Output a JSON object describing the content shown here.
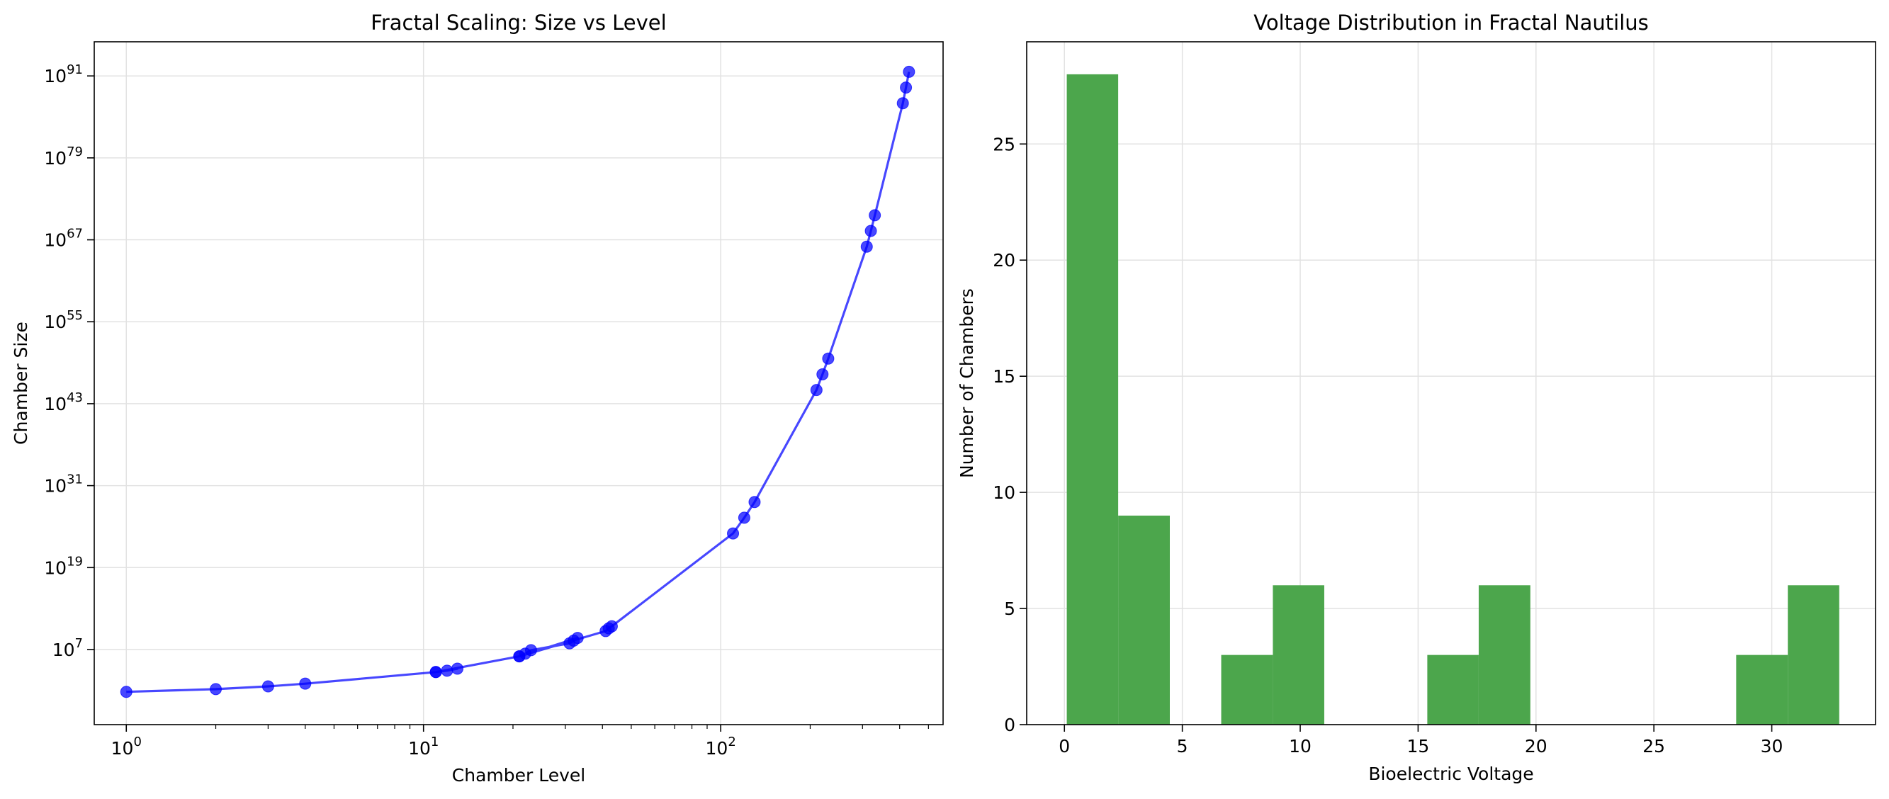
{
  "chart_data": [
    {
      "type": "line",
      "title": "Fractal Scaling: Size vs Level",
      "xlabel": "Chamber Level",
      "ylabel": "Chamber Size",
      "xscale": "log",
      "yscale": "log",
      "xlim": [
        0.78,
        560
      ],
      "ylim_exponent": [
        -4,
        96
      ],
      "grid": true,
      "xticks": [
        {
          "value": 1,
          "base": "10",
          "exp": "0"
        },
        {
          "value": 10,
          "base": "10",
          "exp": "1"
        },
        {
          "value": 100,
          "base": "10",
          "exp": "2"
        }
      ],
      "yticks": [
        {
          "exponent": 7,
          "base": "10",
          "exp": "7"
        },
        {
          "exponent": 19,
          "base": "10",
          "exp": "19"
        },
        {
          "exponent": 31,
          "base": "10",
          "exp": "31"
        },
        {
          "exponent": 43,
          "base": "10",
          "exp": "43"
        },
        {
          "exponent": 55,
          "base": "10",
          "exp": "55"
        },
        {
          "exponent": 67,
          "base": "10",
          "exp": "67"
        },
        {
          "exponent": 79,
          "base": "10",
          "exp": "79"
        },
        {
          "exponent": 91,
          "base": "10",
          "exp": "91"
        }
      ],
      "series": [
        {
          "color": "#0000ff",
          "marker": "circle",
          "points": [
            {
              "x": 1,
              "log10_y": 0.8
            },
            {
              "x": 2,
              "log10_y": 1.2
            },
            {
              "x": 3,
              "log10_y": 1.6
            },
            {
              "x": 4,
              "log10_y": 2.0
            },
            {
              "x": 11,
              "log10_y": 3.7
            },
            {
              "x": 12,
              "log10_y": 3.9
            },
            {
              "x": 13,
              "log10_y": 4.2
            },
            {
              "x": 11,
              "log10_y": 3.7
            },
            {
              "x": 21,
              "log10_y": 6.0
            },
            {
              "x": 22,
              "log10_y": 6.4
            },
            {
              "x": 23,
              "log10_y": 6.9
            },
            {
              "x": 31,
              "log10_y": 7.9
            },
            {
              "x": 32,
              "log10_y": 8.3
            },
            {
              "x": 33,
              "log10_y": 8.7
            },
            {
              "x": 21,
              "log10_y": 6.0
            },
            {
              "x": 41,
              "log10_y": 9.7
            },
            {
              "x": 42,
              "log10_y": 10.1
            },
            {
              "x": 43,
              "log10_y": 10.4
            },
            {
              "x": 110,
              "log10_y": 24.0
            },
            {
              "x": 120,
              "log10_y": 26.3
            },
            {
              "x": 130,
              "log10_y": 28.6
            },
            {
              "x": 210,
              "log10_y": 45.0
            },
            {
              "x": 220,
              "log10_y": 47.3
            },
            {
              "x": 230,
              "log10_y": 49.6
            },
            {
              "x": 310,
              "log10_y": 66.0
            },
            {
              "x": 320,
              "log10_y": 68.3
            },
            {
              "x": 330,
              "log10_y": 70.6
            },
            {
              "x": 410,
              "log10_y": 87.0
            },
            {
              "x": 420,
              "log10_y": 89.3
            },
            {
              "x": 430,
              "log10_y": 91.6
            }
          ]
        }
      ]
    },
    {
      "type": "bar",
      "title": "Voltage Distribution in Fractal Nautilus",
      "xlabel": "Bioelectric Voltage",
      "ylabel": "Number of Chambers",
      "xlim": [
        -1.6,
        34.4
      ],
      "ylim": [
        0,
        29.4
      ],
      "grid": true,
      "color": "#4ca64c",
      "xticks": [
        "0",
        "5",
        "10",
        "15",
        "20",
        "25",
        "30"
      ],
      "yticks": [
        "0",
        "5",
        "10",
        "15",
        "20",
        "25"
      ],
      "bins": [
        {
          "x0": 0.1,
          "x1": 2.28,
          "count": 28
        },
        {
          "x0": 2.28,
          "x1": 4.47,
          "count": 9
        },
        {
          "x0": 4.47,
          "x1": 6.65,
          "count": 0
        },
        {
          "x0": 6.65,
          "x1": 8.84,
          "count": 3
        },
        {
          "x0": 8.84,
          "x1": 11.02,
          "count": 6
        },
        {
          "x0": 11.02,
          "x1": 13.2,
          "count": 0
        },
        {
          "x0": 13.2,
          "x1": 15.39,
          "count": 0
        },
        {
          "x0": 15.39,
          "x1": 17.57,
          "count": 3
        },
        {
          "x0": 17.57,
          "x1": 19.76,
          "count": 6
        },
        {
          "x0": 19.76,
          "x1": 21.94,
          "count": 0
        },
        {
          "x0": 21.94,
          "x1": 24.12,
          "count": 0
        },
        {
          "x0": 24.12,
          "x1": 26.31,
          "count": 0
        },
        {
          "x0": 26.31,
          "x1": 28.49,
          "count": 0
        },
        {
          "x0": 28.49,
          "x1": 30.68,
          "count": 3
        },
        {
          "x0": 30.68,
          "x1": 32.86,
          "count": 6
        }
      ]
    }
  ]
}
